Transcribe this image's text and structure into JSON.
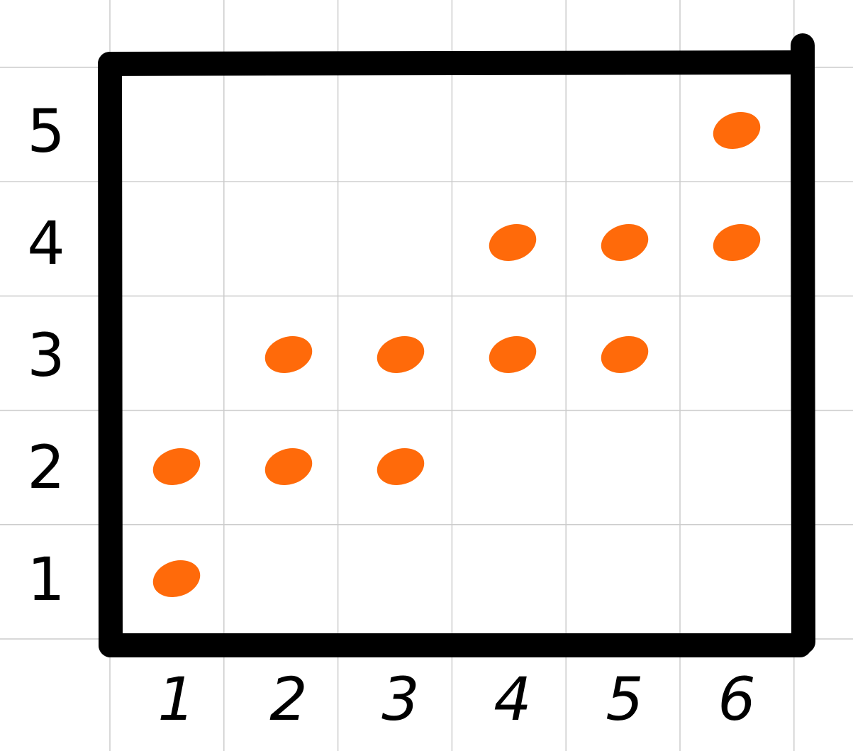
{
  "chart_data": {
    "type": "scatter",
    "title": "",
    "xlabel": "",
    "ylabel": "",
    "x_ticks": [
      "1",
      "2",
      "3",
      "4",
      "5",
      "6"
    ],
    "y_ticks": [
      "1",
      "2",
      "3",
      "4",
      "5"
    ],
    "xlim": [
      0.5,
      6.5
    ],
    "ylim": [
      0.5,
      5.5
    ],
    "grid": true,
    "points": [
      {
        "x": 1,
        "y": 1
      },
      {
        "x": 1,
        "y": 2
      },
      {
        "x": 2,
        "y": 2
      },
      {
        "x": 3,
        "y": 2
      },
      {
        "x": 2,
        "y": 3
      },
      {
        "x": 3,
        "y": 3
      },
      {
        "x": 4,
        "y": 3
      },
      {
        "x": 5,
        "y": 3
      },
      {
        "x": 4,
        "y": 4
      },
      {
        "x": 5,
        "y": 4
      },
      {
        "x": 6,
        "y": 4
      },
      {
        "x": 6,
        "y": 5
      }
    ]
  },
  "colors": {
    "background": "#ffffff",
    "grid": "#cccccc",
    "frame": "#000000",
    "point": "#ff6a0a",
    "label": "#000000"
  }
}
